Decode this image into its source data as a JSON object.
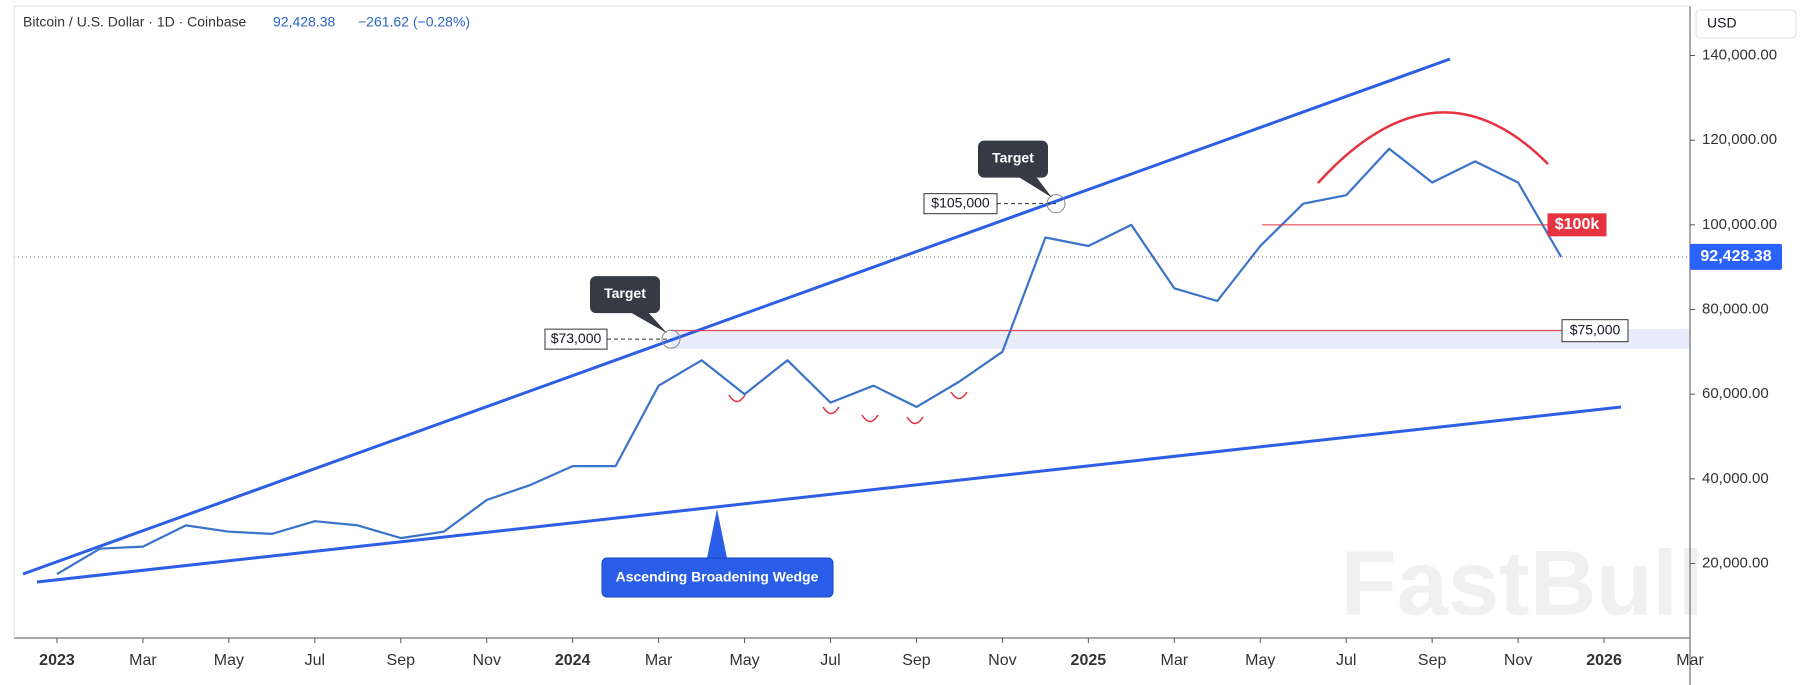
{
  "chart_data": {
    "type": "line",
    "header": {
      "symbol": "Bitcoin / U.S. Dollar · 1D · Coinbase",
      "price": "92,428.38",
      "change": "−261.62 (−0.28%)"
    },
    "currency": "USD",
    "watermark": "FastBull",
    "color": "#3a73c9",
    "x": [
      "2023-01",
      "2023-02",
      "2023-03",
      "2023-04",
      "2023-05",
      "2023-06",
      "2023-07",
      "2023-08",
      "2023-09",
      "2023-10",
      "2023-11",
      "2023-12",
      "2024-01",
      "2024-02",
      "2024-03",
      "2024-04",
      "2024-05",
      "2024-06",
      "2024-07",
      "2024-08",
      "2024-09",
      "2024-10",
      "2024-11",
      "2024-12",
      "2025-01",
      "2025-02",
      "2025-03",
      "2025-04",
      "2025-05",
      "2025-06",
      "2025-07",
      "2025-08",
      "2025-09",
      "2025-10",
      "2025-11",
      "2025-12"
    ],
    "values": [
      17500,
      23500,
      24000,
      29000,
      27500,
      27000,
      30000,
      29000,
      26000,
      27500,
      35000,
      38500,
      43000,
      43000,
      62000,
      68000,
      60000,
      68000,
      58000,
      62000,
      57000,
      63000,
      70000,
      97000,
      95000,
      100000,
      85000,
      82000,
      95000,
      105000,
      107000,
      118000,
      110000,
      115000,
      110000,
      92428.38
    ],
    "xlim": [
      "2022-12",
      "2026-03"
    ],
    "xticks": [
      {
        "value": "2023-01",
        "label": "2023"
      },
      {
        "value": "2023-03",
        "label": "Mar"
      },
      {
        "value": "2023-05",
        "label": "May"
      },
      {
        "value": "2023-07",
        "label": "Jul"
      },
      {
        "value": "2023-09",
        "label": "Sep"
      },
      {
        "value": "2023-11",
        "label": "Nov"
      },
      {
        "value": "2024-01",
        "label": "2024"
      },
      {
        "value": "2024-03",
        "label": "Mar"
      },
      {
        "value": "2024-05",
        "label": "May"
      },
      {
        "value": "2024-07",
        "label": "Jul"
      },
      {
        "value": "2024-09",
        "label": "Sep"
      },
      {
        "value": "2024-11",
        "label": "Nov"
      },
      {
        "value": "2025-01",
        "label": "2025"
      },
      {
        "value": "2025-03",
        "label": "Mar"
      },
      {
        "value": "2025-05",
        "label": "May"
      },
      {
        "value": "2025-07",
        "label": "Jul"
      },
      {
        "value": "2025-09",
        "label": "Sep"
      },
      {
        "value": "2025-11",
        "label": "Nov"
      },
      {
        "value": "2026-01",
        "label": "2026"
      },
      {
        "value": "2026-03",
        "label": "Mar"
      }
    ],
    "ylim": [
      2400,
      151700
    ],
    "yticks": [
      {
        "value": 20000,
        "label": "20,000.00"
      },
      {
        "value": 40000,
        "label": "40,000.00"
      },
      {
        "value": 60000,
        "label": "60,000.00"
      },
      {
        "value": 80000,
        "label": "80,000.00"
      },
      {
        "value": 100000,
        "label": "100,000.00"
      },
      {
        "value": 120000,
        "label": "120,000.00"
      },
      {
        "value": 140000,
        "label": "140,000.00"
      }
    ],
    "annotations": {
      "targets": [
        {
          "text": "Target",
          "value": 73000,
          "label": "$73,000"
        },
        {
          "text": "Target",
          "value": 105000,
          "label": "$105,000"
        }
      ],
      "levels": [
        {
          "value": 100000,
          "label": "$100k"
        },
        {
          "value": 75000,
          "label": "$75,000"
        }
      ],
      "pattern": "Ascending Broadening Wedge"
    }
  }
}
